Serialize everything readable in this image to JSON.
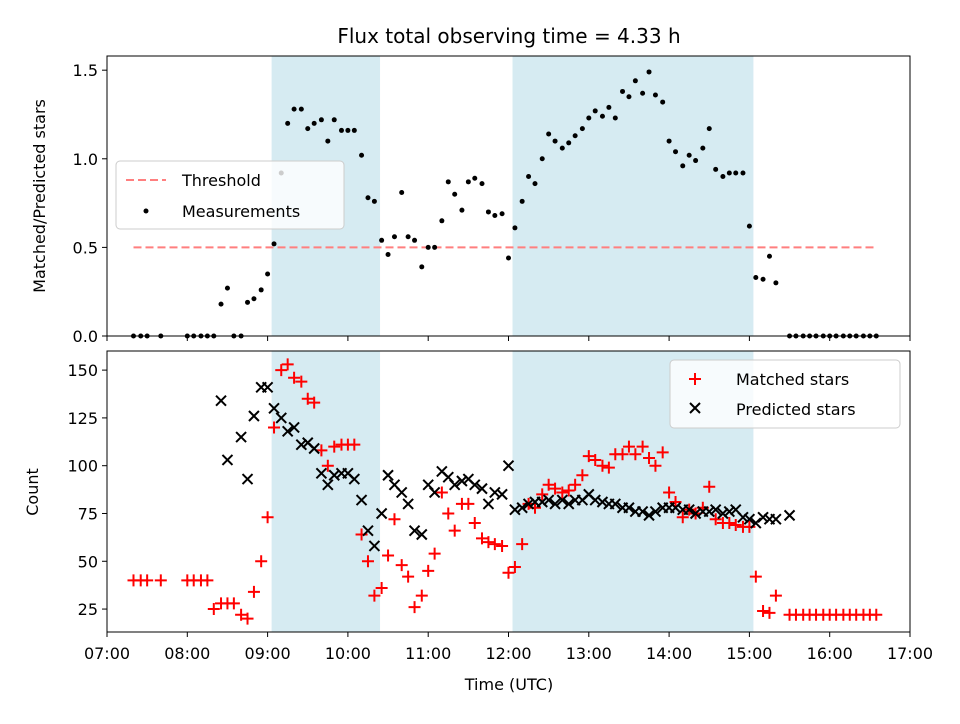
{
  "chart_data": [
    {
      "type": "scatter",
      "title": "Flux total observing time = 4.33 h",
      "xlabel": "",
      "ylabel": "Matched/Predicted stars",
      "xlim": [
        7.0,
        17.0
      ],
      "ylim": [
        0.0,
        1.58
      ],
      "yticks": [
        0.0,
        0.5,
        1.0,
        1.5
      ],
      "ytick_labels": [
        "0.0",
        "0.5",
        "1.0",
        "1.5"
      ],
      "shaded_spans": [
        [
          9.05,
          10.4
        ],
        [
          12.05,
          15.05
        ]
      ],
      "legend_position": "center-left",
      "legend": [
        "Threshold",
        "Measurements"
      ],
      "threshold": {
        "name": "Threshold",
        "y": 0.5,
        "x_range": [
          7.33,
          16.58
        ],
        "color": "#ff7f7f"
      },
      "series": [
        {
          "name": "Measurements",
          "color": "#000000",
          "x": [
            7.33,
            7.42,
            7.5,
            7.67,
            8.0,
            8.08,
            8.17,
            8.25,
            8.33,
            8.42,
            8.5,
            8.58,
            8.67,
            8.75,
            8.83,
            8.92,
            9.0,
            9.08,
            9.17,
            9.25,
            9.33,
            9.42,
            9.5,
            9.58,
            9.67,
            9.75,
            9.83,
            9.92,
            10.0,
            10.08,
            10.17,
            10.25,
            10.33,
            10.42,
            10.5,
            10.58,
            10.67,
            10.75,
            10.83,
            10.92,
            11.0,
            11.08,
            11.17,
            11.25,
            11.33,
            11.42,
            11.5,
            11.58,
            11.67,
            11.75,
            11.83,
            11.92,
            12.0,
            12.08,
            12.17,
            12.25,
            12.33,
            12.42,
            12.5,
            12.58,
            12.67,
            12.75,
            12.83,
            12.92,
            13.0,
            13.08,
            13.17,
            13.25,
            13.33,
            13.42,
            13.5,
            13.58,
            13.67,
            13.75,
            13.83,
            13.92,
            14.0,
            14.08,
            14.17,
            14.25,
            14.33,
            14.42,
            14.5,
            14.58,
            14.67,
            14.75,
            14.83,
            14.92,
            15.0,
            15.08,
            15.17,
            15.25,
            15.33,
            15.5,
            15.58,
            15.67,
            15.75,
            15.83,
            15.92,
            16.0,
            16.08,
            16.17,
            16.25,
            16.33,
            16.42,
            16.5,
            16.58
          ],
          "y": [
            0.0,
            0.0,
            0.0,
            0.0,
            0.0,
            0.0,
            0.0,
            0.0,
            0.0,
            0.18,
            0.27,
            0.0,
            0.0,
            0.19,
            0.21,
            0.26,
            0.35,
            0.52,
            0.92,
            1.2,
            1.28,
            1.28,
            1.17,
            1.2,
            1.22,
            1.1,
            1.22,
            1.16,
            1.16,
            1.16,
            1.02,
            0.78,
            0.76,
            0.54,
            0.46,
            0.56,
            0.81,
            0.56,
            0.54,
            0.39,
            0.5,
            0.5,
            0.65,
            0.87,
            0.8,
            0.71,
            0.87,
            0.89,
            0.86,
            0.7,
            0.68,
            0.69,
            0.44,
            0.61,
            0.76,
            0.9,
            0.86,
            1.0,
            1.14,
            1.1,
            1.06,
            1.09,
            1.13,
            1.17,
            1.23,
            1.27,
            1.24,
            1.29,
            1.23,
            1.38,
            1.35,
            1.44,
            1.37,
            1.49,
            1.36,
            1.32,
            1.1,
            1.04,
            0.96,
            1.02,
            0.99,
            1.06,
            1.17,
            0.94,
            0.9,
            0.92,
            0.92,
            0.92,
            0.62,
            0.33,
            0.32,
            0.45,
            0.3,
            0.0,
            0.0,
            0.0,
            0.0,
            0.0,
            0.0,
            0.0,
            0.0,
            0.0,
            0.0,
            0.0,
            0.0,
            0.0,
            0.0
          ]
        }
      ]
    },
    {
      "type": "scatter",
      "title": "",
      "xlabel": "Time (UTC)",
      "ylabel": "Count",
      "xlim": [
        7.0,
        17.0
      ],
      "ylim": [
        13,
        160
      ],
      "yticks": [
        25,
        50,
        75,
        100,
        125,
        150
      ],
      "ytick_labels": [
        "25",
        "50",
        "75",
        "100",
        "125",
        "150"
      ],
      "xticks": [
        7,
        8,
        9,
        10,
        11,
        12,
        13,
        14,
        15,
        16,
        17
      ],
      "xtick_labels": [
        "07:00",
        "08:00",
        "09:00",
        "10:00",
        "11:00",
        "12:00",
        "13:00",
        "14:00",
        "15:00",
        "16:00",
        "17:00"
      ],
      "shaded_spans": [
        [
          9.05,
          10.4
        ],
        [
          12.05,
          15.05
        ]
      ],
      "legend_position": "top-right",
      "legend": [
        "Matched stars",
        "Predicted stars"
      ],
      "series": [
        {
          "name": "Matched stars",
          "marker": "+",
          "color": "#ff0000",
          "x": [
            7.33,
            7.42,
            7.5,
            7.67,
            8.0,
            8.08,
            8.17,
            8.25,
            8.33,
            8.42,
            8.5,
            8.58,
            8.67,
            8.75,
            8.83,
            8.92,
            9.0,
            9.08,
            9.17,
            9.25,
            9.33,
            9.42,
            9.5,
            9.58,
            9.67,
            9.75,
            9.83,
            9.92,
            10.0,
            10.08,
            10.17,
            10.25,
            10.33,
            10.42,
            10.5,
            10.58,
            10.67,
            10.75,
            10.83,
            10.92,
            11.0,
            11.08,
            11.17,
            11.25,
            11.33,
            11.42,
            11.5,
            11.58,
            11.67,
            11.75,
            11.83,
            11.92,
            12.0,
            12.08,
            12.17,
            12.25,
            12.33,
            12.42,
            12.5,
            12.58,
            12.67,
            12.75,
            12.83,
            12.92,
            13.0,
            13.08,
            13.17,
            13.25,
            13.33,
            13.42,
            13.5,
            13.58,
            13.67,
            13.75,
            13.83,
            13.92,
            14.0,
            14.08,
            14.17,
            14.25,
            14.33,
            14.42,
            14.5,
            14.58,
            14.67,
            14.75,
            14.83,
            14.92,
            15.0,
            15.08,
            15.17,
            15.25,
            15.33,
            15.5,
            15.58,
            15.67,
            15.75,
            15.83,
            15.92,
            16.0,
            16.08,
            16.17,
            16.25,
            16.33,
            16.42,
            16.5,
            16.58
          ],
          "y": [
            40,
            40,
            40,
            40,
            40,
            40,
            40,
            40,
            25,
            28,
            28,
            28,
            22,
            20,
            34,
            50,
            73,
            120,
            150,
            153,
            146,
            144,
            135,
            133,
            108,
            100,
            110,
            111,
            111,
            111,
            64,
            50,
            32,
            36,
            53,
            72,
            48,
            42,
            26,
            32,
            45,
            54,
            86,
            75,
            66,
            80,
            80,
            70,
            62,
            60,
            59,
            58,
            44,
            47,
            59,
            80,
            78,
            85,
            90,
            88,
            86,
            87,
            90,
            95,
            105,
            103,
            100,
            99,
            106,
            106,
            110,
            106,
            110,
            104,
            100,
            107,
            86,
            81,
            73,
            77,
            75,
            78,
            89,
            72,
            70,
            70,
            69,
            68,
            68,
            42,
            24,
            23,
            32,
            22,
            22,
            22,
            22,
            22,
            22,
            22,
            22,
            22,
            22,
            22,
            22,
            22,
            22
          ]
        },
        {
          "name": "Predicted stars",
          "marker": "x",
          "color": "#000000",
          "x": [
            8.42,
            8.5,
            8.67,
            8.75,
            8.83,
            8.92,
            9.0,
            9.08,
            9.17,
            9.25,
            9.33,
            9.42,
            9.5,
            9.58,
            9.67,
            9.75,
            9.83,
            9.92,
            10.0,
            10.08,
            10.17,
            10.25,
            10.33,
            10.42,
            10.5,
            10.58,
            10.67,
            10.75,
            10.83,
            10.92,
            11.0,
            11.08,
            11.17,
            11.25,
            11.33,
            11.42,
            11.5,
            11.58,
            11.67,
            11.75,
            11.83,
            11.92,
            12.0,
            12.08,
            12.17,
            12.25,
            12.33,
            12.42,
            12.5,
            12.58,
            12.67,
            12.75,
            12.83,
            12.92,
            13.0,
            13.08,
            13.17,
            13.25,
            13.33,
            13.42,
            13.5,
            13.58,
            13.67,
            13.75,
            13.83,
            13.92,
            14.0,
            14.08,
            14.17,
            14.25,
            14.33,
            14.42,
            14.5,
            14.58,
            14.67,
            14.75,
            14.83,
            14.92,
            15.0,
            15.08,
            15.17,
            15.25,
            15.33,
            15.5
          ],
          "y": [
            134,
            103,
            115,
            93,
            126,
            141,
            141,
            130,
            125,
            118,
            120,
            111,
            112,
            109,
            96,
            90,
            95,
            96,
            96,
            93,
            82,
            66,
            58,
            75,
            95,
            90,
            86,
            80,
            66,
            64,
            90,
            86,
            97,
            94,
            90,
            92,
            93,
            90,
            88,
            80,
            86,
            85,
            100,
            77,
            78,
            80,
            81,
            81,
            82,
            80,
            82,
            80,
            82,
            82,
            85,
            82,
            81,
            80,
            80,
            78,
            78,
            76,
            76,
            74,
            76,
            78,
            78,
            78,
            77,
            77,
            75,
            76,
            76,
            77,
            75,
            76,
            77,
            73,
            72,
            70,
            73,
            72,
            72,
            74
          ]
        }
      ]
    }
  ]
}
